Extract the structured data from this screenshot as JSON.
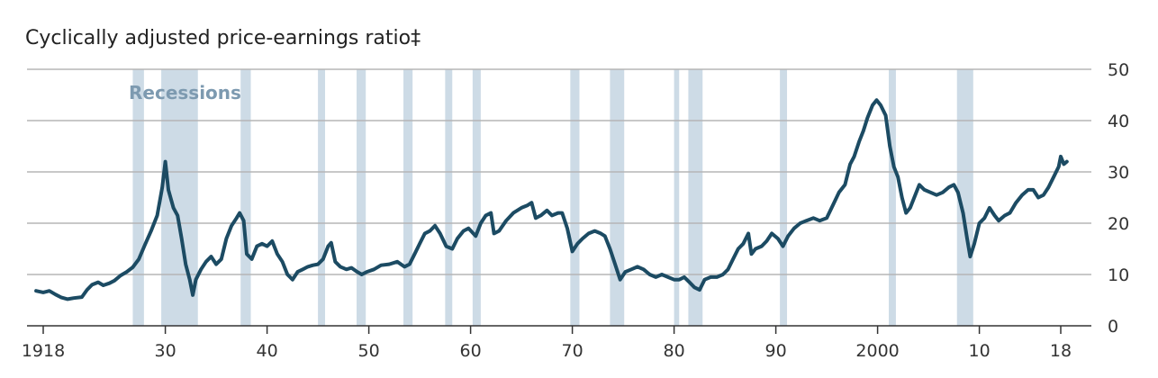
{
  "chart_data": {
    "type": "line",
    "title": "Cyclically adjusted price-earnings ratio‡",
    "ylim": [
      0,
      50
    ],
    "yticks": [
      0,
      10,
      20,
      30,
      40,
      50
    ],
    "xlim": [
      1917,
      2019.5
    ],
    "xticks": [
      {
        "year": 1918,
        "label": "1918"
      },
      {
        "year": 1930,
        "label": "30"
      },
      {
        "year": 1940,
        "label": "40"
      },
      {
        "year": 1950,
        "label": "50"
      },
      {
        "year": 1960,
        "label": "60"
      },
      {
        "year": 1970,
        "label": "70"
      },
      {
        "year": 1980,
        "label": "80"
      },
      {
        "year": 1990,
        "label": "90"
      },
      {
        "year": 2000,
        "label": "2000"
      },
      {
        "year": 2010,
        "label": "10"
      },
      {
        "year": 2018,
        "label": "18"
      }
    ],
    "grid": true,
    "y_axis_side": "right",
    "recession_label": "Recessions",
    "recessions": [
      [
        1926.8,
        1927.9
      ],
      [
        1929.6,
        1933.2
      ],
      [
        1937.4,
        1938.4
      ],
      [
        1945.0,
        1945.7
      ],
      [
        1948.8,
        1949.7
      ],
      [
        1953.4,
        1954.3
      ],
      [
        1957.5,
        1958.2
      ],
      [
        1960.2,
        1961.0
      ],
      [
        1969.8,
        1970.7
      ],
      [
        1973.7,
        1975.1
      ],
      [
        1980.0,
        1980.5
      ],
      [
        1981.4,
        1982.8
      ],
      [
        1990.4,
        1991.1
      ],
      [
        2001.1,
        2001.8
      ],
      [
        2007.8,
        2009.4
      ]
    ],
    "series": [
      {
        "values": [
          [
            1917.3,
            6.8
          ],
          [
            1918.0,
            6.5
          ],
          [
            1918.6,
            6.8
          ],
          [
            1919.2,
            6.1
          ],
          [
            1919.8,
            5.5
          ],
          [
            1920.4,
            5.2
          ],
          [
            1921.0,
            5.4
          ],
          [
            1921.8,
            5.6
          ],
          [
            1922.3,
            7.0
          ],
          [
            1922.8,
            8.0
          ],
          [
            1923.4,
            8.5
          ],
          [
            1923.9,
            7.9
          ],
          [
            1924.5,
            8.3
          ],
          [
            1925.0,
            8.8
          ],
          [
            1925.6,
            9.8
          ],
          [
            1926.2,
            10.5
          ],
          [
            1926.8,
            11.4
          ],
          [
            1927.4,
            13.0
          ],
          [
            1928.0,
            15.8
          ],
          [
            1928.6,
            18.5
          ],
          [
            1929.2,
            21.5
          ],
          [
            1929.7,
            27.0
          ],
          [
            1930.0,
            32.0
          ],
          [
            1930.3,
            26.5
          ],
          [
            1930.8,
            23.0
          ],
          [
            1931.2,
            21.5
          ],
          [
            1931.6,
            17.0
          ],
          [
            1932.0,
            12.0
          ],
          [
            1932.4,
            9.0
          ],
          [
            1932.7,
            6.0
          ],
          [
            1933.0,
            9.0
          ],
          [
            1933.5,
            11.0
          ],
          [
            1934.0,
            12.5
          ],
          [
            1934.5,
            13.5
          ],
          [
            1935.0,
            12.0
          ],
          [
            1935.5,
            13.0
          ],
          [
            1936.0,
            17.0
          ],
          [
            1936.5,
            19.5
          ],
          [
            1937.0,
            21.0
          ],
          [
            1937.3,
            22.0
          ],
          [
            1937.7,
            20.5
          ],
          [
            1938.0,
            14.0
          ],
          [
            1938.5,
            13.0
          ],
          [
            1939.0,
            15.5
          ],
          [
            1939.5,
            16.0
          ],
          [
            1940.0,
            15.5
          ],
          [
            1940.5,
            16.5
          ],
          [
            1941.0,
            14.0
          ],
          [
            1941.5,
            12.5
          ],
          [
            1942.0,
            10.0
          ],
          [
            1942.5,
            9.0
          ],
          [
            1943.0,
            10.5
          ],
          [
            1943.5,
            11.0
          ],
          [
            1944.0,
            11.5
          ],
          [
            1944.5,
            11.8
          ],
          [
            1945.0,
            12.0
          ],
          [
            1945.5,
            13.0
          ],
          [
            1946.0,
            15.5
          ],
          [
            1946.3,
            16.2
          ],
          [
            1946.7,
            12.5
          ],
          [
            1947.2,
            11.5
          ],
          [
            1947.8,
            11.0
          ],
          [
            1948.3,
            11.3
          ],
          [
            1948.8,
            10.6
          ],
          [
            1949.3,
            10.0
          ],
          [
            1949.8,
            10.5
          ],
          [
            1950.5,
            11.0
          ],
          [
            1951.2,
            11.8
          ],
          [
            1952.0,
            12.0
          ],
          [
            1952.8,
            12.5
          ],
          [
            1953.5,
            11.5
          ],
          [
            1954.0,
            12.0
          ],
          [
            1954.5,
            14.0
          ],
          [
            1955.0,
            16.0
          ],
          [
            1955.5,
            18.0
          ],
          [
            1956.0,
            18.5
          ],
          [
            1956.5,
            19.5
          ],
          [
            1957.0,
            18.0
          ],
          [
            1957.6,
            15.5
          ],
          [
            1958.2,
            15.0
          ],
          [
            1958.7,
            17.0
          ],
          [
            1959.3,
            18.5
          ],
          [
            1959.8,
            19.0
          ],
          [
            1960.5,
            17.5
          ],
          [
            1961.0,
            20.0
          ],
          [
            1961.5,
            21.5
          ],
          [
            1962.0,
            22.0
          ],
          [
            1962.3,
            18.0
          ],
          [
            1962.8,
            18.5
          ],
          [
            1963.5,
            20.5
          ],
          [
            1964.2,
            22.0
          ],
          [
            1965.0,
            23.0
          ],
          [
            1965.6,
            23.5
          ],
          [
            1966.0,
            24.0
          ],
          [
            1966.4,
            21.0
          ],
          [
            1966.9,
            21.5
          ],
          [
            1967.5,
            22.5
          ],
          [
            1968.0,
            21.5
          ],
          [
            1968.6,
            22.0
          ],
          [
            1969.0,
            22.0
          ],
          [
            1969.5,
            19.0
          ],
          [
            1970.0,
            14.5
          ],
          [
            1970.5,
            16.0
          ],
          [
            1971.0,
            17.0
          ],
          [
            1971.6,
            18.0
          ],
          [
            1972.2,
            18.5
          ],
          [
            1972.8,
            18.0
          ],
          [
            1973.2,
            17.5
          ],
          [
            1973.7,
            15.0
          ],
          [
            1974.2,
            12.0
          ],
          [
            1974.7,
            9.0
          ],
          [
            1975.2,
            10.5
          ],
          [
            1975.8,
            11.0
          ],
          [
            1976.4,
            11.5
          ],
          [
            1977.0,
            11.0
          ],
          [
            1977.6,
            10.0
          ],
          [
            1978.2,
            9.5
          ],
          [
            1978.8,
            10.0
          ],
          [
            1979.4,
            9.5
          ],
          [
            1980.0,
            9.0
          ],
          [
            1980.5,
            9.0
          ],
          [
            1981.0,
            9.5
          ],
          [
            1981.5,
            8.5
          ],
          [
            1982.0,
            7.5
          ],
          [
            1982.5,
            7.0
          ],
          [
            1983.0,
            9.0
          ],
          [
            1983.6,
            9.5
          ],
          [
            1984.2,
            9.5
          ],
          [
            1984.8,
            10.0
          ],
          [
            1985.3,
            11.0
          ],
          [
            1985.8,
            13.0
          ],
          [
            1986.3,
            15.0
          ],
          [
            1986.8,
            16.0
          ],
          [
            1987.3,
            18.0
          ],
          [
            1987.6,
            14.0
          ],
          [
            1988.0,
            15.0
          ],
          [
            1988.6,
            15.5
          ],
          [
            1989.1,
            16.5
          ],
          [
            1989.6,
            18.0
          ],
          [
            1990.2,
            17.0
          ],
          [
            1990.7,
            15.5
          ],
          [
            1991.2,
            17.5
          ],
          [
            1991.8,
            19.0
          ],
          [
            1992.4,
            20.0
          ],
          [
            1993.0,
            20.5
          ],
          [
            1993.7,
            21.0
          ],
          [
            1994.3,
            20.5
          ],
          [
            1995.0,
            21.0
          ],
          [
            1995.6,
            23.5
          ],
          [
            1996.2,
            26.0
          ],
          [
            1996.8,
            27.5
          ],
          [
            1997.3,
            31.5
          ],
          [
            1997.7,
            33.0
          ],
          [
            1998.2,
            36.0
          ],
          [
            1998.6,
            38.0
          ],
          [
            1999.0,
            40.5
          ],
          [
            1999.5,
            43.0
          ],
          [
            1999.9,
            44.0
          ],
          [
            2000.3,
            43.0
          ],
          [
            2000.8,
            41.0
          ],
          [
            2001.2,
            35.0
          ],
          [
            2001.6,
            31.0
          ],
          [
            2002.0,
            29.0
          ],
          [
            2002.4,
            25.0
          ],
          [
            2002.8,
            22.0
          ],
          [
            2003.2,
            23.0
          ],
          [
            2003.6,
            25.0
          ],
          [
            2004.1,
            27.5
          ],
          [
            2004.6,
            26.5
          ],
          [
            2005.2,
            26.0
          ],
          [
            2005.8,
            25.5
          ],
          [
            2006.4,
            26.0
          ],
          [
            2007.0,
            27.0
          ],
          [
            2007.5,
            27.5
          ],
          [
            2007.9,
            26.0
          ],
          [
            2008.4,
            22.0
          ],
          [
            2008.8,
            17.0
          ],
          [
            2009.1,
            13.5
          ],
          [
            2009.5,
            16.0
          ],
          [
            2010.0,
            20.0
          ],
          [
            2010.5,
            21.0
          ],
          [
            2011.0,
            23.0
          ],
          [
            2011.5,
            21.5
          ],
          [
            2011.9,
            20.5
          ],
          [
            2012.5,
            21.5
          ],
          [
            2013.0,
            22.0
          ],
          [
            2013.6,
            24.0
          ],
          [
            2014.2,
            25.5
          ],
          [
            2014.8,
            26.5
          ],
          [
            2015.3,
            26.5
          ],
          [
            2015.8,
            25.0
          ],
          [
            2016.3,
            25.5
          ],
          [
            2016.8,
            27.0
          ],
          [
            2017.3,
            29.0
          ],
          [
            2017.8,
            31.0
          ],
          [
            2018.0,
            33.0
          ],
          [
            2018.3,
            31.5
          ],
          [
            2018.6,
            32.0
          ]
        ]
      }
    ],
    "colors": {
      "line": "#1c4b63",
      "recession": "#cddbe6",
      "grid": "#b5b5b5",
      "axis": "#333333",
      "recession_label": "#7d9ab0"
    }
  }
}
